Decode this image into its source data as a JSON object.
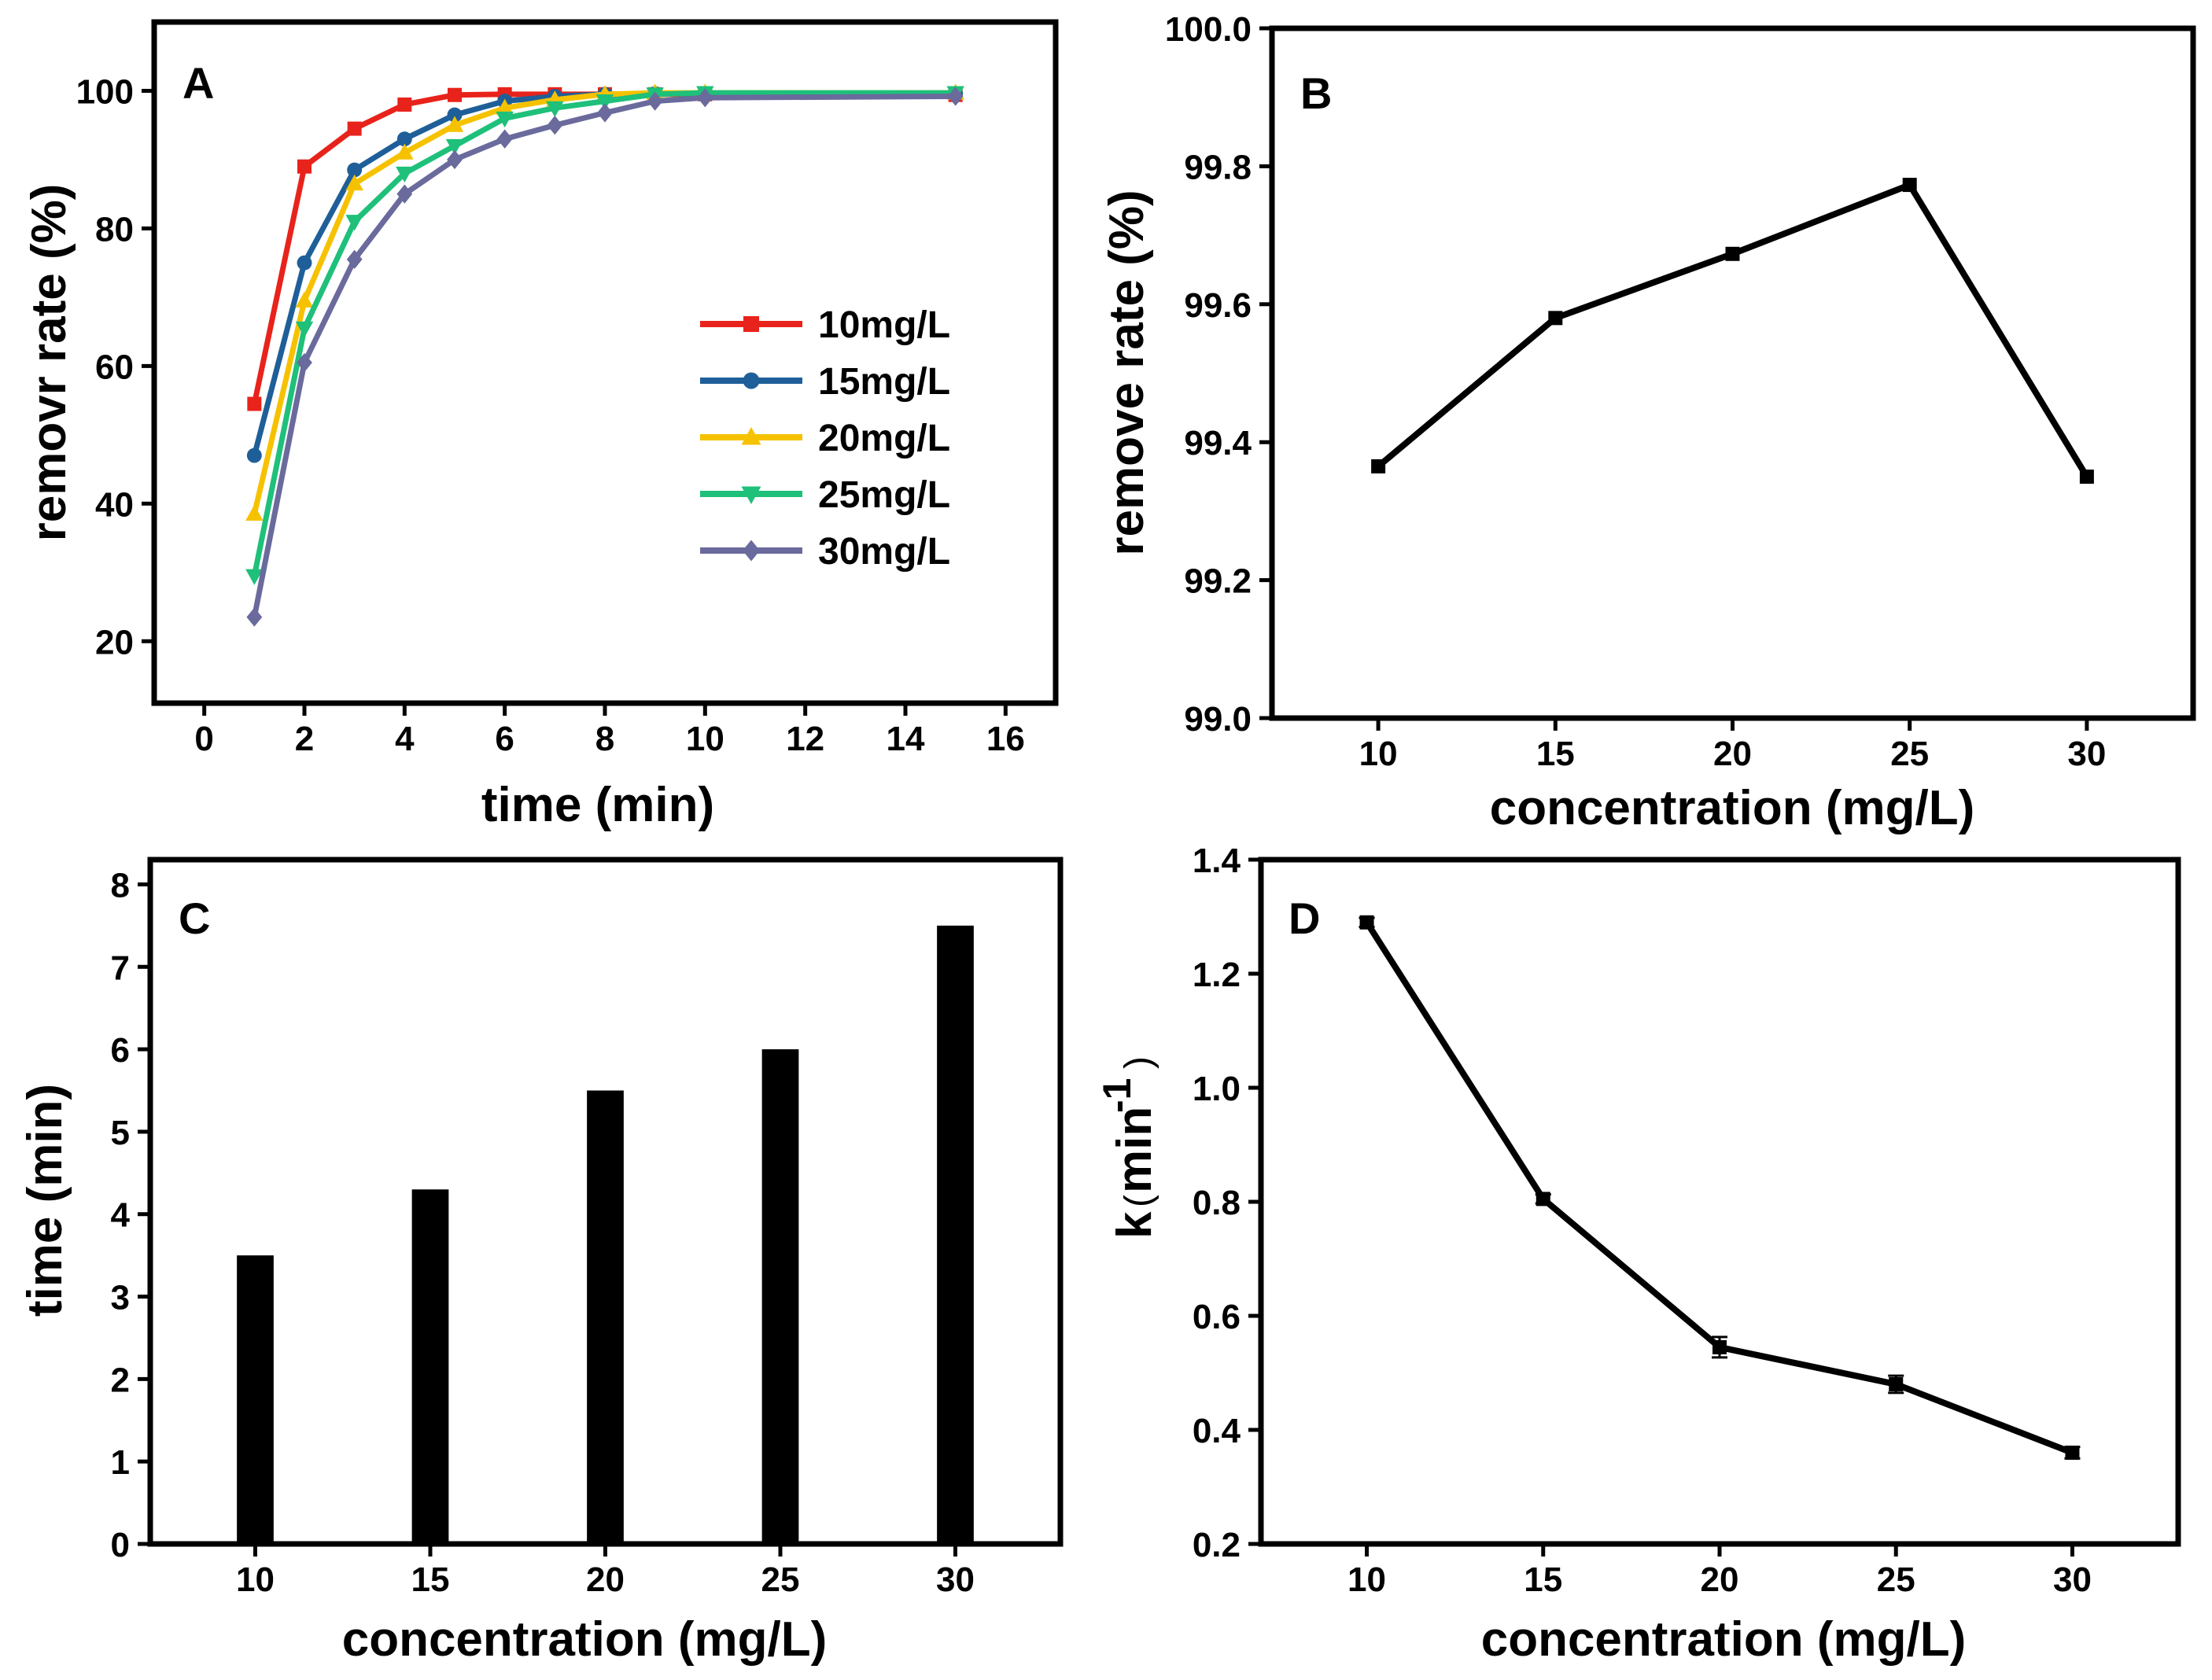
{
  "chart_data": [
    {
      "panel": "A",
      "type": "line",
      "xlabel": "time (min)",
      "ylabel": "removr rate (%)",
      "xlim": [
        -1,
        17
      ],
      "ylim": [
        11,
        110
      ],
      "xticks": [
        0,
        2,
        4,
        6,
        8,
        10,
        12,
        14,
        16
      ],
      "yticks": [
        20,
        40,
        60,
        80,
        100
      ],
      "legend_position": "right-middle",
      "x": [
        1,
        2,
        3,
        4,
        5,
        6,
        7,
        8,
        9,
        10,
        15
      ],
      "series": [
        {
          "name": "10mg/L",
          "color": "#e8231b",
          "marker": "square",
          "values": [
            54.5,
            89,
            94.5,
            98,
            99.4,
            99.5,
            99.5,
            99.5,
            99.5,
            99.5,
            99.4
          ]
        },
        {
          "name": "15mg/L",
          "color": "#1f5f99",
          "marker": "circle",
          "values": [
            47,
            75,
            88.5,
            93,
            96.5,
            98.5,
            99.2,
            99.5,
            99.6,
            99.6,
            99.6
          ]
        },
        {
          "name": "20mg/L",
          "color": "#f6c200",
          "marker": "triangle-up",
          "values": [
            38.5,
            69.5,
            86.5,
            91,
            95,
            97.5,
            98.7,
            99.5,
            99.7,
            99.7,
            99.7
          ]
        },
        {
          "name": "25mg/L",
          "color": "#1ec07a",
          "marker": "triangle-down",
          "values": [
            29.5,
            65.5,
            81,
            88,
            92,
            96,
            97.5,
            98.5,
            99.5,
            99.7,
            99.7
          ]
        },
        {
          "name": "30mg/L",
          "color": "#6a6a9d",
          "marker": "diamond",
          "values": [
            23.5,
            60.5,
            75.5,
            85,
            90,
            93,
            95,
            96.8,
            98.5,
            99,
            99.2
          ]
        }
      ]
    },
    {
      "panel": "B",
      "type": "line",
      "xlabel": "concentration (mg/L)",
      "ylabel": "remove rate (%)",
      "xlim": [
        7,
        33
      ],
      "ylim": [
        99.0,
        100.0
      ],
      "xticks": [
        10,
        15,
        20,
        25,
        30
      ],
      "yticks": [
        "99.0",
        "99.2",
        "99.4",
        "99.6",
        "99.8",
        "100.0"
      ],
      "x": [
        10,
        15,
        20,
        25,
        30
      ],
      "values": [
        99.365,
        99.58,
        99.673,
        99.773,
        99.35
      ]
    },
    {
      "panel": "C",
      "type": "bar",
      "xlabel": "concentration (mg/L)",
      "ylabel": "time (min)",
      "xlim": [
        7,
        33
      ],
      "ylim": [
        0,
        8.3
      ],
      "xticks": [
        10,
        15,
        20,
        25,
        30
      ],
      "yticks": [
        0,
        1,
        2,
        3,
        4,
        5,
        6,
        7,
        8
      ],
      "categories": [
        10,
        15,
        20,
        25,
        30
      ],
      "values": [
        3.5,
        4.3,
        5.5,
        6.0,
        7.5
      ]
    },
    {
      "panel": "D",
      "type": "line",
      "xlabel": "concentration (mg/L)",
      "ylabel": "k(min-1)",
      "ylabel_main": "k",
      "ylabel_open": "(",
      "ylabel_unit": "min",
      "ylabel_exp": "-1",
      "ylabel_close": ")",
      "xlim": [
        7,
        33
      ],
      "ylim": [
        0.2,
        1.4
      ],
      "xticks": [
        10,
        15,
        20,
        25,
        30
      ],
      "yticks": [
        "0.2",
        "0.4",
        "0.6",
        "0.8",
        "1.0",
        "1.2",
        "1.4"
      ],
      "x": [
        10,
        15,
        20,
        25,
        30
      ],
      "values": [
        1.29,
        0.805,
        0.545,
        0.48,
        0.36
      ],
      "errors": [
        0.008,
        0.008,
        0.018,
        0.015,
        0.01
      ]
    }
  ]
}
